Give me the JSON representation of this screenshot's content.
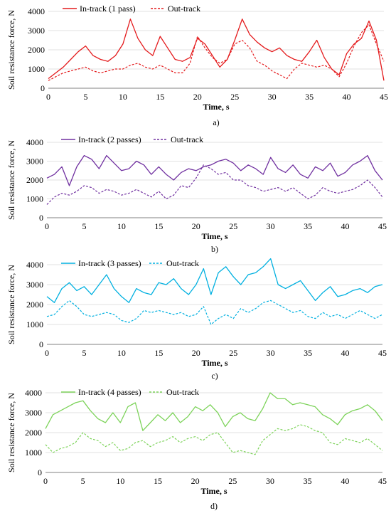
{
  "chart_data": [
    {
      "type": "line",
      "panel_label": "a)",
      "xlabel": "Time, s",
      "ylabel": "Soil resistance force, N",
      "xlim": [
        0,
        45
      ],
      "ylim": [
        0,
        4000
      ],
      "xticks": [
        0,
        5,
        10,
        15,
        20,
        25,
        30,
        35,
        40,
        45
      ],
      "yticks": [
        0,
        1000,
        2000,
        3000,
        4000
      ],
      "grid": "horizontal",
      "legend": "top-left",
      "series": [
        {
          "name": "In-track (1 pass)",
          "color": "#e41a1c",
          "dash": "solid",
          "x": [
            0,
            1,
            2,
            3,
            4,
            5,
            6,
            7,
            8,
            9,
            10,
            11,
            12,
            13,
            14,
            15,
            16,
            17,
            18,
            19,
            20,
            21,
            22,
            23,
            24,
            25,
            26,
            27,
            28,
            29,
            30,
            31,
            32,
            33,
            34,
            35,
            36,
            37,
            38,
            39,
            40,
            41,
            42,
            43,
            44,
            45
          ],
          "y": [
            500,
            800,
            1100,
            1500,
            1900,
            2200,
            1700,
            1500,
            1400,
            1700,
            2300,
            3600,
            2600,
            2000,
            1700,
            2700,
            2100,
            1500,
            1400,
            1600,
            2600,
            2300,
            1700,
            1100,
            1500,
            2500,
            3600,
            2800,
            2400,
            2100,
            1900,
            2100,
            1700,
            1500,
            1400,
            1900,
            2500,
            1600,
            1000,
            700,
            1800,
            2300,
            2600,
            3500,
            2500,
            400
          ]
        },
        {
          "name": "Out-track",
          "color": "#e41a1c",
          "dash": "dashed",
          "x": [
            0,
            1,
            2,
            3,
            4,
            5,
            6,
            7,
            8,
            9,
            10,
            11,
            12,
            13,
            14,
            15,
            16,
            17,
            18,
            19,
            20,
            21,
            22,
            23,
            24,
            25,
            26,
            27,
            28,
            29,
            30,
            31,
            32,
            33,
            34,
            35,
            36,
            37,
            38,
            39,
            40,
            41,
            42,
            43,
            44,
            45
          ],
          "y": [
            400,
            600,
            800,
            900,
            1000,
            1100,
            900,
            800,
            900,
            1000,
            1000,
            1200,
            1300,
            1100,
            1000,
            1200,
            1000,
            800,
            800,
            1300,
            2700,
            2100,
            1600,
            1300,
            1500,
            2300,
            2500,
            2100,
            1400,
            1200,
            900,
            700,
            500,
            1000,
            1300,
            1200,
            1100,
            1200,
            1000,
            600,
            1300,
            2200,
            2900,
            3300,
            2300,
            1400
          ]
        }
      ]
    },
    {
      "type": "line",
      "panel_label": "b)",
      "xlabel": "Time, s",
      "ylabel": "Soil resistance force, N",
      "xlim": [
        0,
        45
      ],
      "ylim": [
        0,
        4000
      ],
      "xticks": [
        0,
        5,
        10,
        15,
        20,
        25,
        30,
        35,
        40,
        45
      ],
      "yticks": [
        0,
        1000,
        2000,
        3000,
        4000
      ],
      "grid": "horizontal",
      "legend": "top-left",
      "series": [
        {
          "name": "In-track (2 passes)",
          "color": "#7030a0",
          "dash": "solid",
          "x": [
            0,
            1,
            2,
            3,
            4,
            5,
            6,
            7,
            8,
            9,
            10,
            11,
            12,
            13,
            14,
            15,
            16,
            17,
            18,
            19,
            20,
            21,
            22,
            23,
            24,
            25,
            26,
            27,
            28,
            29,
            30,
            31,
            32,
            33,
            34,
            35,
            36,
            37,
            38,
            39,
            40,
            41,
            42,
            43,
            44,
            45
          ],
          "y": [
            2100,
            2300,
            2700,
            1700,
            2700,
            3300,
            3100,
            2600,
            3300,
            2900,
            2500,
            2600,
            3000,
            2800,
            2300,
            2700,
            2300,
            2000,
            2400,
            2600,
            2500,
            2700,
            2800,
            3000,
            3100,
            2900,
            2500,
            2800,
            2600,
            2300,
            3200,
            2600,
            2400,
            2800,
            2300,
            2100,
            2700,
            2500,
            2900,
            2200,
            2400,
            2800,
            3000,
            3300,
            2500,
            2000
          ]
        },
        {
          "name": "Out-track",
          "color": "#7030a0",
          "dash": "dashed",
          "x": [
            0,
            1,
            2,
            3,
            4,
            5,
            6,
            7,
            8,
            9,
            10,
            11,
            12,
            13,
            14,
            15,
            16,
            17,
            18,
            19,
            20,
            21,
            22,
            23,
            24,
            25,
            26,
            27,
            28,
            29,
            30,
            31,
            32,
            33,
            34,
            35,
            36,
            37,
            38,
            39,
            40,
            41,
            42,
            43,
            44,
            45
          ],
          "y": [
            700,
            1100,
            1300,
            1200,
            1400,
            1700,
            1600,
            1300,
            1500,
            1400,
            1200,
            1300,
            1500,
            1300,
            1100,
            1400,
            1000,
            1200,
            1700,
            1600,
            2100,
            2800,
            2600,
            2300,
            2400,
            2000,
            2000,
            1700,
            1600,
            1400,
            1500,
            1600,
            1400,
            1600,
            1300,
            1000,
            1200,
            1600,
            1400,
            1300,
            1400,
            1500,
            1700,
            2000,
            1600,
            1100
          ]
        }
      ]
    },
    {
      "type": "line",
      "panel_label": "c)",
      "xlabel": "Time, s",
      "ylabel": "Soil resistance force, N",
      "xlim": [
        0,
        45
      ],
      "ylim": [
        0,
        4000
      ],
      "xticks": [
        0,
        5,
        10,
        15,
        20,
        25,
        30,
        35,
        40,
        45
      ],
      "yticks": [
        0,
        1000,
        2000,
        3000,
        4000
      ],
      "grid": "horizontal",
      "legend": "top-left",
      "series": [
        {
          "name": "In-track (3 passes)",
          "color": "#00b0e0",
          "dash": "solid",
          "x": [
            0,
            1,
            2,
            3,
            4,
            5,
            6,
            7,
            8,
            9,
            10,
            11,
            12,
            13,
            14,
            15,
            16,
            17,
            18,
            19,
            20,
            21,
            22,
            23,
            24,
            25,
            26,
            27,
            28,
            29,
            30,
            31,
            32,
            33,
            34,
            35,
            36,
            37,
            38,
            39,
            40,
            41,
            42,
            43,
            44,
            45
          ],
          "y": [
            2400,
            2100,
            2800,
            3100,
            2700,
            2900,
            2500,
            3000,
            3500,
            2800,
            2400,
            2100,
            2800,
            2600,
            2500,
            3100,
            3000,
            3300,
            2800,
            2500,
            3000,
            3800,
            2500,
            3600,
            3900,
            3400,
            3000,
            3500,
            3600,
            3900,
            4300,
            3000,
            2800,
            3000,
            3200,
            2700,
            2200,
            2600,
            2900,
            2400,
            2500,
            2700,
            2800,
            2600,
            2900,
            3000
          ]
        },
        {
          "name": "Out-track",
          "color": "#00b0e0",
          "dash": "dashed",
          "x": [
            0,
            1,
            2,
            3,
            4,
            5,
            6,
            7,
            8,
            9,
            10,
            11,
            12,
            13,
            14,
            15,
            16,
            17,
            18,
            19,
            20,
            21,
            22,
            23,
            24,
            25,
            26,
            27,
            28,
            29,
            30,
            31,
            32,
            33,
            34,
            35,
            36,
            37,
            38,
            39,
            40,
            41,
            42,
            43,
            44,
            45
          ],
          "y": [
            1400,
            1500,
            1900,
            2200,
            1900,
            1500,
            1400,
            1500,
            1600,
            1500,
            1200,
            1100,
            1300,
            1700,
            1600,
            1700,
            1600,
            1500,
            1600,
            1400,
            1500,
            1900,
            1000,
            1300,
            1500,
            1300,
            1800,
            1600,
            1800,
            2100,
            2200,
            2000,
            1800,
            1600,
            1700,
            1400,
            1300,
            1600,
            1400,
            1500,
            1300,
            1500,
            1700,
            1500,
            1300,
            1500
          ]
        }
      ]
    },
    {
      "type": "line",
      "panel_label": "d)",
      "xlabel": "Time, s",
      "ylabel": "Soil resistance force, N",
      "xlim": [
        0,
        45
      ],
      "ylim": [
        0,
        4000
      ],
      "xticks": [
        0,
        5,
        10,
        15,
        20,
        25,
        30,
        35,
        40,
        45
      ],
      "yticks": [
        0,
        1000,
        2000,
        3000,
        4000
      ],
      "grid": "horizontal",
      "legend": "top-left",
      "series": [
        {
          "name": "In-track (4 passes)",
          "color": "#7dd35a",
          "dash": "solid",
          "x": [
            0,
            1,
            2,
            3,
            4,
            5,
            6,
            7,
            8,
            9,
            10,
            11,
            12,
            13,
            14,
            15,
            16,
            17,
            18,
            19,
            20,
            21,
            22,
            23,
            24,
            25,
            26,
            27,
            28,
            29,
            30,
            31,
            32,
            33,
            34,
            35,
            36,
            37,
            38,
            39,
            40,
            41,
            42,
            43,
            44,
            45
          ],
          "y": [
            2200,
            2900,
            3100,
            3300,
            3500,
            3600,
            3100,
            2700,
            2500,
            3000,
            2500,
            3300,
            3500,
            2100,
            2500,
            2900,
            2600,
            3000,
            2500,
            2800,
            3300,
            3100,
            3400,
            3000,
            2300,
            2800,
            3000,
            2700,
            2600,
            3200,
            4000,
            3700,
            3700,
            3400,
            3500,
            3400,
            3300,
            2900,
            2700,
            2400,
            2900,
            3100,
            3200,
            3400,
            3100,
            2600
          ]
        },
        {
          "name": "Out-track",
          "color": "#7dd35a",
          "dash": "dashed",
          "x": [
            0,
            1,
            2,
            3,
            4,
            5,
            6,
            7,
            8,
            9,
            10,
            11,
            12,
            13,
            14,
            15,
            16,
            17,
            18,
            19,
            20,
            21,
            22,
            23,
            24,
            25,
            26,
            27,
            28,
            29,
            30,
            31,
            32,
            33,
            34,
            35,
            36,
            37,
            38,
            39,
            40,
            41,
            42,
            43,
            44,
            45
          ],
          "y": [
            1400,
            1000,
            1200,
            1300,
            1500,
            2000,
            1700,
            1600,
            1300,
            1500,
            1100,
            1200,
            1500,
            1600,
            1300,
            1500,
            1600,
            1800,
            1500,
            1700,
            1800,
            1600,
            1900,
            2000,
            1500,
            1000,
            1100,
            1000,
            900,
            1600,
            1900,
            2200,
            2100,
            2200,
            2400,
            2300,
            2100,
            2000,
            1500,
            1400,
            1700,
            1600,
            1500,
            1700,
            1400,
            1100
          ]
        }
      ]
    }
  ]
}
